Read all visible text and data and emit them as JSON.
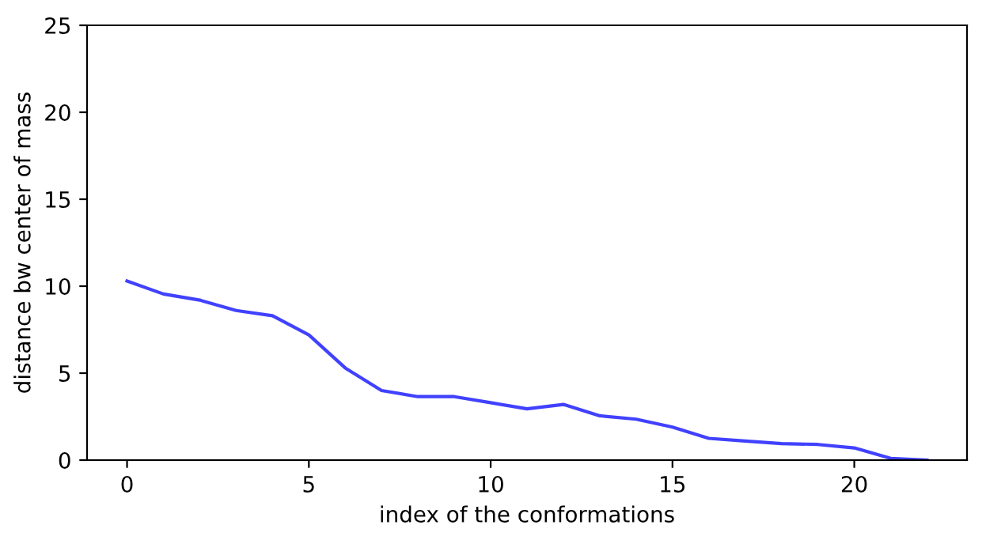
{
  "chart_data": {
    "type": "line",
    "xlabel": "index of the conformations",
    "ylabel": "distance bw center of mass",
    "x": [
      0,
      1,
      2,
      3,
      4,
      5,
      6,
      7,
      8,
      9,
      10,
      11,
      12,
      13,
      14,
      15,
      16,
      17,
      18,
      19,
      20,
      21,
      22
    ],
    "series": [
      {
        "color": "#2020ff",
        "values": [
          10.3,
          9.55,
          9.2,
          8.6,
          8.3,
          7.2,
          5.3,
          4.0,
          3.65,
          3.65,
          3.3,
          2.95,
          3.2,
          2.55,
          2.35,
          1.9,
          1.25,
          1.1,
          0.95,
          0.9,
          0.7,
          0.1,
          0.0
        ]
      }
    ],
    "xlim": [
      -1.1,
      23.1
    ],
    "xticks": [
      0,
      5,
      10,
      15,
      20
    ],
    "ylim": [
      0,
      25
    ],
    "yticks": [
      0,
      5,
      10,
      15,
      20,
      25
    ],
    "grid": false,
    "legend": false
  }
}
